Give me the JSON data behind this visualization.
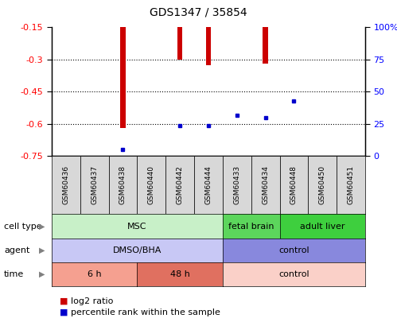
{
  "title": "GDS1347 / 35854",
  "samples": [
    "GSM60436",
    "GSM60437",
    "GSM60438",
    "GSM60440",
    "GSM60442",
    "GSM60444",
    "GSM60433",
    "GSM60434",
    "GSM60448",
    "GSM60450",
    "GSM60451"
  ],
  "log2_ratio": [
    0,
    0,
    -0.62,
    0,
    -0.3,
    -0.325,
    -0.15,
    -0.32,
    -0.15,
    0,
    0
  ],
  "percentile_rank": [
    null,
    null,
    5.5,
    null,
    24,
    24,
    32,
    30,
    43,
    null,
    null
  ],
  "ylim_left": [
    -0.75,
    -0.15
  ],
  "ylim_right": [
    0,
    100
  ],
  "left_ticks": [
    -0.75,
    -0.6,
    -0.45,
    -0.3,
    -0.15
  ],
  "right_ticks": [
    0,
    25,
    50,
    75,
    100
  ],
  "cell_type_groups": [
    {
      "label": "MSC",
      "start": 0,
      "end": 5,
      "color": "#c8f0c8"
    },
    {
      "label": "fetal brain",
      "start": 6,
      "end": 7,
      "color": "#5cd65c"
    },
    {
      "label": "adult liver",
      "start": 8,
      "end": 10,
      "color": "#3ecf3e"
    }
  ],
  "agent_groups": [
    {
      "label": "DMSO/BHA",
      "start": 0,
      "end": 5,
      "color": "#c8c8f5"
    },
    {
      "label": "control",
      "start": 6,
      "end": 10,
      "color": "#8888dd"
    }
  ],
  "time_groups": [
    {
      "label": "6 h",
      "start": 0,
      "end": 2,
      "color": "#f5a090"
    },
    {
      "label": "48 h",
      "start": 3,
      "end": 5,
      "color": "#e07060"
    },
    {
      "label": "control",
      "start": 6,
      "end": 10,
      "color": "#fad0c8"
    }
  ],
  "bar_color": "#cc0000",
  "dot_color": "#0000cc",
  "background_color": "#ffffff",
  "grid_color": "#000000",
  "row_labels": [
    "cell type",
    "agent",
    "time"
  ],
  "legend": [
    "log2 ratio",
    "percentile rank within the sample"
  ],
  "sample_box_color": "#d8d8d8"
}
